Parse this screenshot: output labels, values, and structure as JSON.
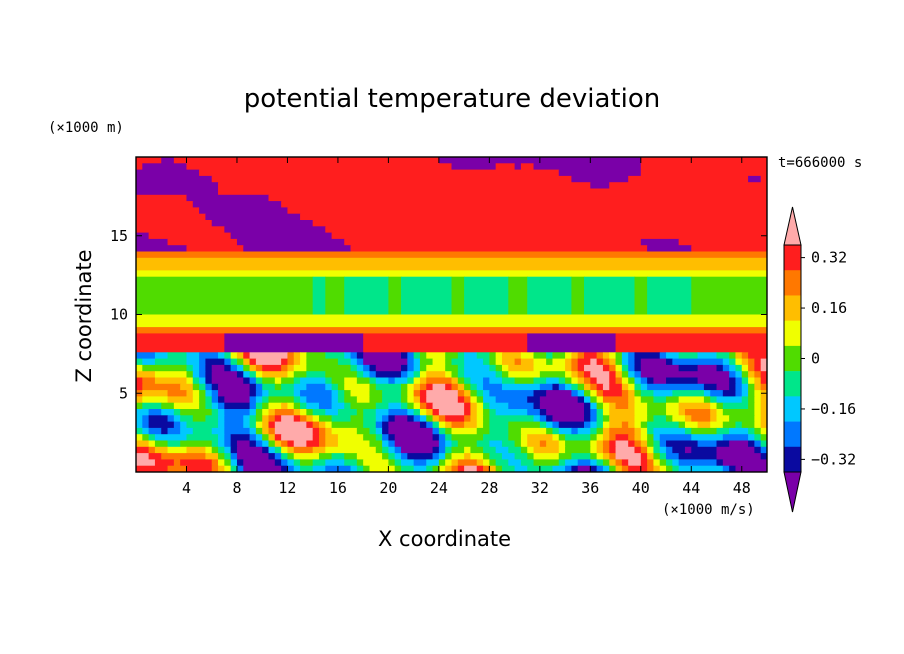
{
  "title": "potential temperature deviation",
  "time_label": "t=666000 s",
  "colors": {
    "plot_background": "#ffaaaa",
    "stops": [
      "#7a00a8",
      "#0a0aa0",
      "#0078ff",
      "#00c8ff",
      "#00e68a",
      "#50dc00",
      "#f0ff00",
      "#ffbe00",
      "#ff7800",
      "#ff1e1e",
      "#ffaaaa"
    ]
  },
  "chart_data": {
    "type": "heatmap",
    "title": "potential temperature deviation",
    "xlabel": "X coordinate",
    "ylabel": "Z coordinate",
    "x_unit": "(×1000 m/s)",
    "y_unit": "(×1000 m)",
    "xlim": [
      0,
      50
    ],
    "ylim": [
      0,
      20
    ],
    "x_ticks": [
      4,
      8,
      12,
      16,
      20,
      24,
      28,
      32,
      36,
      40,
      44,
      48
    ],
    "y_ticks": [
      5,
      10,
      15
    ],
    "colorbar": {
      "labels": [
        "0.32",
        "0.16",
        "0",
        "−0.16",
        "−0.32"
      ],
      "label_values": [
        0.32,
        0.16,
        0,
        -0.16,
        -0.32
      ],
      "levels": [
        -0.4,
        -0.32,
        -0.24,
        -0.16,
        -0.08,
        0,
        0.08,
        0.16,
        0.24,
        0.32,
        0.4
      ],
      "extend": "both"
    }
  }
}
